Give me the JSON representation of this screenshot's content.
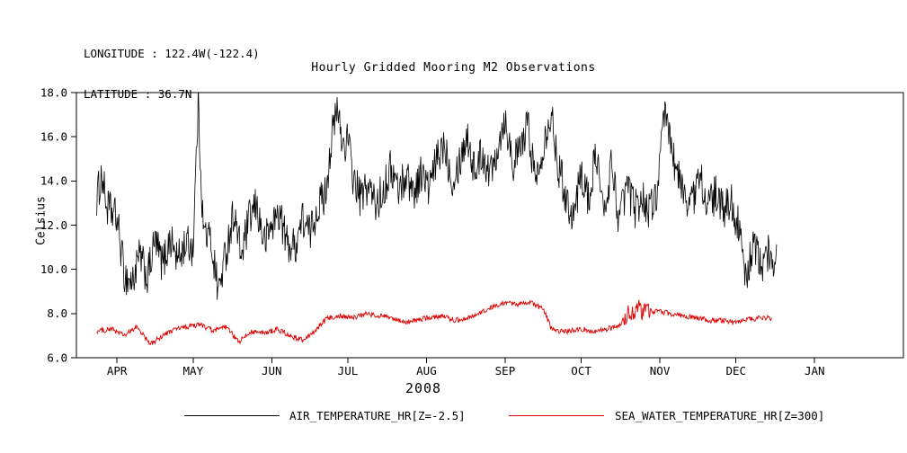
{
  "header": {
    "longitude_label": "LONGITUDE : 122.4W(-122.4)",
    "latitude_label": "LATITUDE : 36.7N"
  },
  "chart_data": {
    "type": "line",
    "title": "Hourly Gridded Mooring M2 Observations",
    "xlabel": "2008",
    "ylabel": "Celsius",
    "ylim": [
      6.0,
      18.0
    ],
    "xlim_days": [
      76,
      402
    ],
    "grid": false,
    "legend_position": "bottom",
    "y_ticks": [
      {
        "value": 6.0,
        "label": "6.0"
      },
      {
        "value": 8.0,
        "label": "8.0"
      },
      {
        "value": 10.0,
        "label": "10.0"
      },
      {
        "value": 12.0,
        "label": "12.0"
      },
      {
        "value": 14.0,
        "label": "14.0"
      },
      {
        "value": 16.0,
        "label": "16.0"
      },
      {
        "value": 18.0,
        "label": "18.0"
      }
    ],
    "x_ticks": [
      {
        "day": 92,
        "label": "APR"
      },
      {
        "day": 122,
        "label": "MAY"
      },
      {
        "day": 153,
        "label": "JUN"
      },
      {
        "day": 183,
        "label": "JUL"
      },
      {
        "day": 214,
        "label": "AUG"
      },
      {
        "day": 245,
        "label": "SEP"
      },
      {
        "day": 275,
        "label": "OCT"
      },
      {
        "day": 306,
        "label": "NOV"
      },
      {
        "day": 336,
        "label": "DEC"
      },
      {
        "day": 367,
        "label": "JAN"
      }
    ],
    "series": [
      {
        "name": "AIR_TEMPERATURE_HR[Z=-2.5]",
        "color": "#000000",
        "noise_amplitude": 0.9,
        "sample_step_days": 0.25,
        "control_points": [
          [
            84,
            13.2
          ],
          [
            86,
            14.3
          ],
          [
            88,
            12.8
          ],
          [
            92,
            12.3
          ],
          [
            95,
            9.7
          ],
          [
            98,
            9.4
          ],
          [
            101,
            10.6
          ],
          [
            104,
            9.6
          ],
          [
            107,
            11.3
          ],
          [
            110,
            10.2
          ],
          [
            113,
            11.4
          ],
          [
            116,
            10.4
          ],
          [
            119,
            11.2
          ],
          [
            122,
            11.0
          ],
          [
            124,
            17.5
          ],
          [
            126,
            11.8
          ],
          [
            129,
            11.3
          ],
          [
            132,
            9.0
          ],
          [
            135,
            10.8
          ],
          [
            138,
            12.6
          ],
          [
            141,
            10.6
          ],
          [
            144,
            12.2
          ],
          [
            147,
            12.9
          ],
          [
            150,
            11.2
          ],
          [
            153,
            12.0
          ],
          [
            156,
            12.6
          ],
          [
            159,
            11.2
          ],
          [
            162,
            11.0
          ],
          [
            165,
            12.3
          ],
          [
            168,
            11.6
          ],
          [
            171,
            12.8
          ],
          [
            174,
            13.4
          ],
          [
            177,
            16.2
          ],
          [
            179,
            17.2
          ],
          [
            181,
            15.6
          ],
          [
            183,
            15.9
          ],
          [
            185,
            14.2
          ],
          [
            188,
            13.2
          ],
          [
            191,
            13.8
          ],
          [
            194,
            12.9
          ],
          [
            197,
            13.6
          ],
          [
            200,
            14.6
          ],
          [
            203,
            13.6
          ],
          [
            206,
            14.3
          ],
          [
            209,
            13.5
          ],
          [
            212,
            14.4
          ],
          [
            215,
            13.6
          ],
          [
            218,
            14.9
          ],
          [
            221,
            15.8
          ],
          [
            224,
            14.1
          ],
          [
            227,
            14.9
          ],
          [
            230,
            16.1
          ],
          [
            233,
            14.4
          ],
          [
            236,
            15.3
          ],
          [
            239,
            14.3
          ],
          [
            242,
            15.6
          ],
          [
            245,
            16.9
          ],
          [
            248,
            14.8
          ],
          [
            251,
            15.4
          ],
          [
            254,
            16.6
          ],
          [
            257,
            13.9
          ],
          [
            260,
            15.7
          ],
          [
            263,
            17.1
          ],
          [
            266,
            14.7
          ],
          [
            269,
            13.3
          ],
          [
            272,
            12.4
          ],
          [
            275,
            14.4
          ],
          [
            278,
            13.1
          ],
          [
            281,
            15.4
          ],
          [
            284,
            12.2
          ],
          [
            287,
            14.9
          ],
          [
            290,
            12.1
          ],
          [
            293,
            13.9
          ],
          [
            296,
            12.7
          ],
          [
            299,
            13.3
          ],
          [
            302,
            12.6
          ],
          [
            305,
            13.6
          ],
          [
            308,
            17.1
          ],
          [
            310,
            15.9
          ],
          [
            313,
            14.2
          ],
          [
            316,
            13.3
          ],
          [
            319,
            13.1
          ],
          [
            322,
            14.3
          ],
          [
            325,
            12.8
          ],
          [
            328,
            13.4
          ],
          [
            331,
            12.6
          ],
          [
            334,
            13.2
          ],
          [
            337,
            11.9
          ],
          [
            340,
            9.4
          ],
          [
            343,
            11.4
          ],
          [
            346,
            9.9
          ],
          [
            349,
            10.8
          ],
          [
            352,
            10.4
          ]
        ]
      },
      {
        "name": "SEA_WATER_TEMPERATURE_HR[Z=300]",
        "color": "#dd0000",
        "noise_amplitude": 0.12,
        "sample_step_days": 0.25,
        "noise_bursts": [
          [
            292,
            302,
            0.35
          ]
        ],
        "control_points": [
          [
            84,
            7.2
          ],
          [
            90,
            7.3
          ],
          [
            95,
            7.0
          ],
          [
            100,
            7.4
          ],
          [
            105,
            6.6
          ],
          [
            110,
            7.0
          ],
          [
            115,
            7.3
          ],
          [
            120,
            7.4
          ],
          [
            125,
            7.5
          ],
          [
            130,
            7.2
          ],
          [
            135,
            7.4
          ],
          [
            140,
            6.7
          ],
          [
            145,
            7.2
          ],
          [
            150,
            7.1
          ],
          [
            155,
            7.3
          ],
          [
            160,
            7.0
          ],
          [
            165,
            6.8
          ],
          [
            170,
            7.2
          ],
          [
            175,
            7.8
          ],
          [
            180,
            7.9
          ],
          [
            185,
            7.8
          ],
          [
            190,
            8.0
          ],
          [
            195,
            7.9
          ],
          [
            200,
            7.8
          ],
          [
            205,
            7.6
          ],
          [
            210,
            7.7
          ],
          [
            215,
            7.8
          ],
          [
            220,
            7.9
          ],
          [
            225,
            7.7
          ],
          [
            230,
            7.8
          ],
          [
            235,
            8.0
          ],
          [
            240,
            8.3
          ],
          [
            245,
            8.5
          ],
          [
            250,
            8.4
          ],
          [
            255,
            8.5
          ],
          [
            260,
            8.2
          ],
          [
            263,
            7.4
          ],
          [
            266,
            7.2
          ],
          [
            270,
            7.2
          ],
          [
            275,
            7.3
          ],
          [
            280,
            7.2
          ],
          [
            285,
            7.3
          ],
          [
            290,
            7.4
          ],
          [
            293,
            8.0
          ],
          [
            297,
            8.2
          ],
          [
            301,
            8.1
          ],
          [
            305,
            8.1
          ],
          [
            310,
            8.0
          ],
          [
            315,
            7.9
          ],
          [
            320,
            7.8
          ],
          [
            325,
            7.7
          ],
          [
            330,
            7.7
          ],
          [
            335,
            7.6
          ],
          [
            340,
            7.7
          ],
          [
            345,
            7.8
          ],
          [
            350,
            7.8
          ]
        ]
      }
    ]
  }
}
